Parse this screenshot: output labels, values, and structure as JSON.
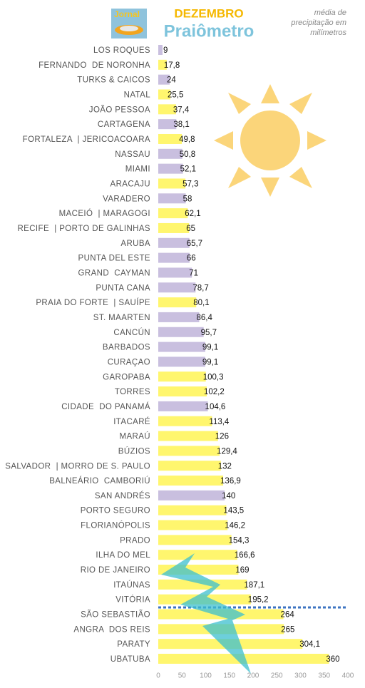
{
  "chart_data": {
    "type": "barh",
    "logo_text": "Jornal",
    "title": "DEZEMBRO",
    "subtitle": "Praiômetro",
    "note": [
      "média de",
      "precipitação em",
      "milímetros"
    ],
    "categories": [
      "LOS ROQUES",
      "FERNANDO  DE NORONHA",
      "TURKS & CAICOS",
      "NATAL",
      "JOÃO PESSOA",
      "CARTAGENA",
      "FORTALEZA  | JERICOACOARA",
      "NASSAU",
      "MIAMI",
      "ARACAJU",
      "VARADERO",
      "MACEIÓ  | MARAGOGI",
      "RECIFE  | PORTO DE GALINHAS",
      "ARUBA",
      "PUNTA DEL ESTE",
      "GRAND  CAYMAN",
      "PUNTA CANA",
      "PRAIA DO FORTE  | SAUÍPE",
      "ST. MAARTEN",
      "CANCÚN",
      "BARBADOS",
      "CURAÇAO",
      "GAROPABA",
      "TORRES",
      "CIDADE  DO PANAMÁ",
      "ITACARÉ",
      "MARAÚ",
      "BÚZIOS",
      "SALVADOR  | MORRO DE S. PAULO",
      "BALNEÁRIO  CAMBORIÚ",
      "SAN ANDRÉS",
      "PORTO SEGURO",
      "FLORIANÓPOLIS",
      "PRADO",
      "ILHA DO MEL",
      "RIO DE JANEIRO",
      "ITAÚNAS",
      "VITÓRIA",
      "SÃO SEBASTIÃO",
      "ANGRA  DOS REIS",
      "PARATY",
      "UBATUBA"
    ],
    "values": [
      9,
      17.8,
      24,
      25.5,
      37.4,
      38.1,
      49.8,
      50.8,
      52.1,
      57.3,
      58,
      62.1,
      65,
      65.7,
      66,
      71,
      78.7,
      80.1,
      86.4,
      95.7,
      99.1,
      99.1,
      100.3,
      102.2,
      104.6,
      113.4,
      126,
      129.4,
      132,
      136.9,
      140,
      143.5,
      146.2,
      154.3,
      166.6,
      169,
      187.1,
      195.2,
      264,
      265,
      304.1,
      360
    ],
    "value_labels": [
      "9",
      "17,8",
      "24",
      "25,5",
      "37,4",
      "38,1",
      "49,8",
      "50,8",
      "52,1",
      "57,3",
      "58",
      "62,1",
      "65",
      "65,7",
      "66",
      "71",
      "78,7",
      "80,1",
      "86,4",
      "95,7",
      "99,1",
      "99,1",
      "100,3",
      "102,2",
      "104,6",
      "113,4",
      "126",
      "129,4",
      "132",
      "136,9",
      "140",
      "143,5",
      "146,2",
      "154,3",
      "166,6",
      "169",
      "187,1",
      "195,2",
      "264",
      "265",
      "304,1",
      "360"
    ],
    "colors": [
      "#c9bfdf",
      "#fff66e",
      "#c9bfdf",
      "#fff66e",
      "#fff66e",
      "#c9bfdf",
      "#fff66e",
      "#c9bfdf",
      "#c9bfdf",
      "#fff66e",
      "#c9bfdf",
      "#fff66e",
      "#fff66e",
      "#c9bfdf",
      "#c9bfdf",
      "#c9bfdf",
      "#c9bfdf",
      "#fff66e",
      "#c9bfdf",
      "#c9bfdf",
      "#c9bfdf",
      "#c9bfdf",
      "#fff66e",
      "#fff66e",
      "#c9bfdf",
      "#fff66e",
      "#fff66e",
      "#fff66e",
      "#fff66e",
      "#fff66e",
      "#c9bfdf",
      "#fff66e",
      "#fff66e",
      "#fff66e",
      "#fff66e",
      "#fff66e",
      "#fff66e",
      "#fff66e",
      "#fff66e",
      "#fff66e",
      "#fff66e",
      "#fff66e"
    ],
    "xlim": [
      0,
      400
    ],
    "xticks": [
      0,
      50,
      100,
      150,
      200,
      250,
      300,
      350,
      400
    ]
  }
}
